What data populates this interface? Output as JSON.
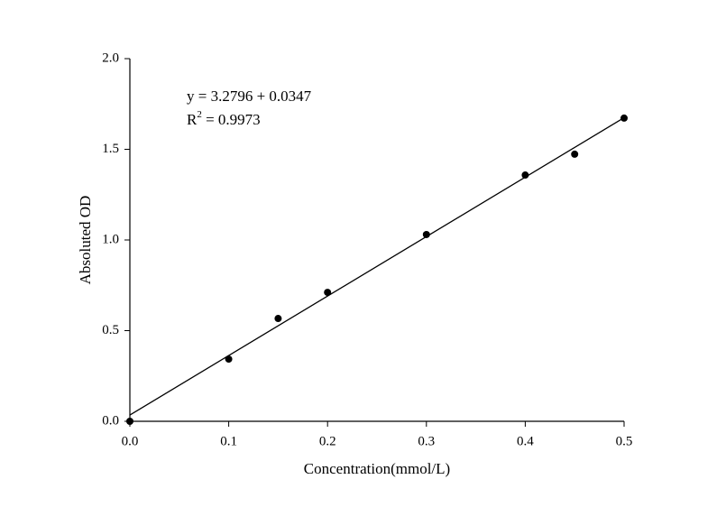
{
  "chart_data": {
    "type": "scatter",
    "xlabel": "Concentration(mmol/L)",
    "ylabel": "Absoluted OD",
    "annotation": "y = 3.2796 + 0.0347",
    "r_squared": {
      "base": "R",
      "sup": "2",
      "text": " = 0.9973"
    },
    "xlim": [
      0,
      0.5
    ],
    "ylim": [
      0,
      2.0
    ],
    "xticks": [
      {
        "value": 0,
        "label": "0.0"
      },
      0.1,
      0.2,
      0.3,
      0.4,
      0.5
    ],
    "yticks": [
      {
        "value": 0,
        "label": "0.0"
      },
      0.5,
      {
        "value": 1,
        "label": "1.0"
      },
      1.5,
      {
        "value": 2,
        "label": "2.0"
      }
    ],
    "grid": false,
    "series": [
      {
        "color": "#000000",
        "x": [
          0,
          0.1,
          0.15,
          0.2,
          0.3,
          0.4,
          0.45,
          0.5
        ],
        "values": [
          0,
          0.343,
          0.567,
          0.711,
          1.03,
          1.358,
          1.473,
          1.672
        ]
      }
    ],
    "fit_line": {
      "color": "#000000",
      "x": [
        0,
        0.5
      ],
      "values": [
        0.0347,
        1.6745
      ]
    }
  }
}
